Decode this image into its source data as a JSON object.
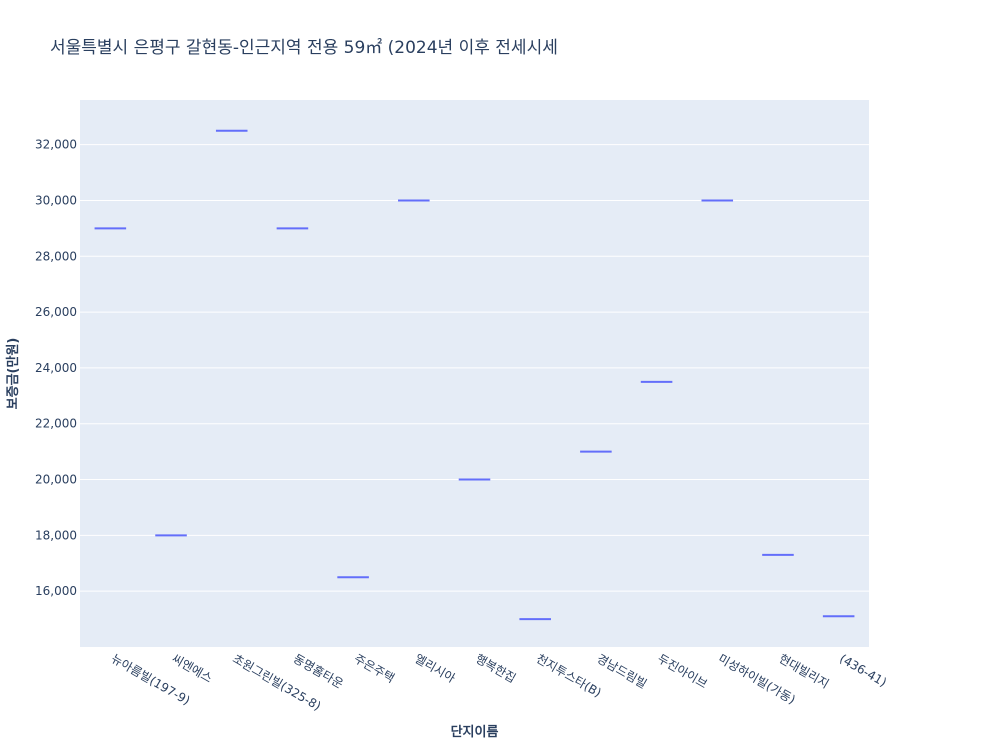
{
  "chart_data": {
    "type": "box",
    "title": "서울특별시 은평구 갈현동-인근지역 전용 59㎡ (2024년 이후 전세시세",
    "xlabel": "단지이름",
    "ylabel": "보증금(만원)",
    "ylim": [
      14000,
      33600
    ],
    "yticks": [
      16000,
      18000,
      20000,
      22000,
      24000,
      26000,
      28000,
      30000,
      32000
    ],
    "ytick_labels": [
      "16,000",
      "18,000",
      "20,000",
      "22,000",
      "24,000",
      "26,000",
      "28,000",
      "30,000",
      "32,000"
    ],
    "categories": [
      "뉴아름빌(197-9)",
      "씨엔에스",
      "초원그린빌(325-8)",
      "동명홈타운",
      "주은주택",
      "엘리시아",
      "행복한집",
      "천지투스타(B)",
      "경남드림빌",
      "두진아이브",
      "미성하이빌(가동)",
      "현대빌리지",
      "(436-41)"
    ],
    "values": [
      29000,
      18000,
      32500,
      29000,
      16500,
      30000,
      20000,
      15000,
      21000,
      23500,
      30000,
      17300,
      15100
    ],
    "series_color": "#636efa",
    "plot_background": "#e5ecf6",
    "grid": true
  }
}
